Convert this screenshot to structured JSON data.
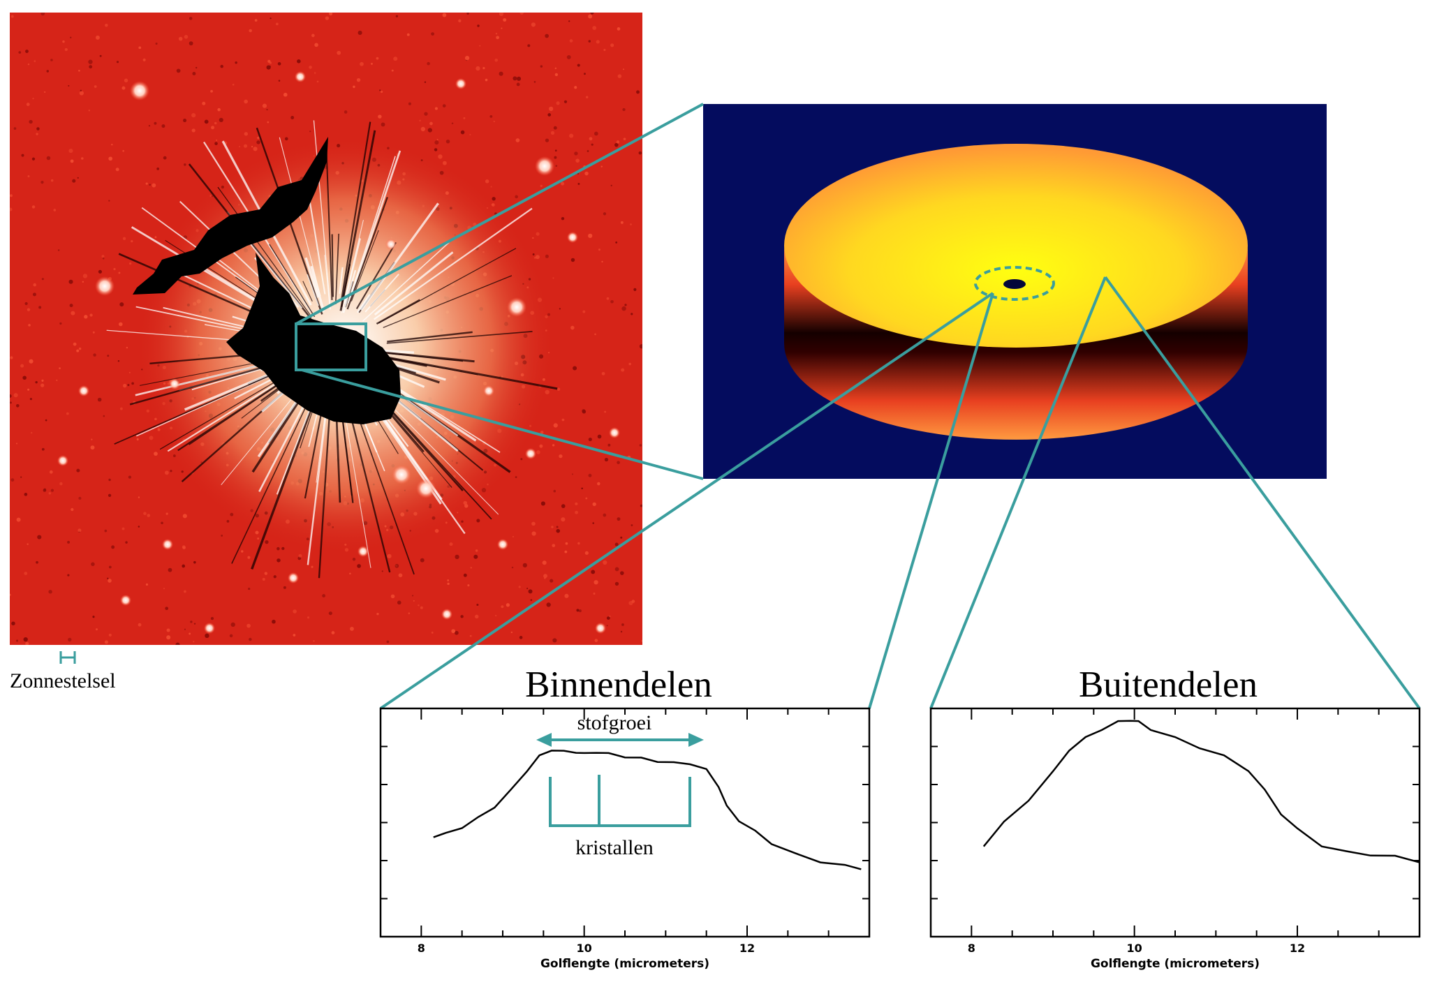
{
  "colors": {
    "teal": "#3a9e9e",
    "sky_red": "#d62418",
    "disk_background": "#040c5e",
    "disk_yellow": "#ffff10",
    "disk_orange": "#ff9030"
  },
  "image_labels": {
    "scale_label": "Zonnestelsel"
  },
  "panels": [
    {
      "title": "Binnendelen",
      "xlabel": "Golflengte (micrometers)",
      "annotations": {
        "arrow_label": "stofgroei",
        "bracket_label": "kristallen"
      }
    },
    {
      "title": "Buitendelen",
      "xlabel": "Golflengte (micrometers)"
    }
  ],
  "chart_data": [
    {
      "type": "line",
      "title": "Binnendelen",
      "xlabel": "Golflengte (micrometers)",
      "ylabel": "",
      "xlim": [
        7.5,
        13.5
      ],
      "x_ticks": [
        8,
        10,
        12
      ],
      "ylim": [
        0,
        1
      ],
      "x": [
        8.15,
        8.3,
        8.5,
        8.7,
        8.9,
        9.1,
        9.3,
        9.45,
        9.6,
        9.75,
        9.9,
        10.0,
        10.15,
        10.3,
        10.5,
        10.7,
        10.9,
        11.1,
        11.3,
        11.5,
        11.65,
        11.75,
        11.9,
        12.1,
        12.3,
        12.6,
        12.9,
        13.2,
        13.4
      ],
      "series": [
        {
          "values": [
            0.44,
            0.45,
            0.48,
            0.52,
            0.57,
            0.64,
            0.73,
            0.79,
            0.82,
            0.81,
            0.81,
            0.8,
            0.81,
            0.8,
            0.79,
            0.78,
            0.77,
            0.76,
            0.76,
            0.73,
            0.66,
            0.57,
            0.51,
            0.46,
            0.41,
            0.36,
            0.33,
            0.31,
            0.3
          ]
        }
      ],
      "annotations": [
        {
          "text": "stofgroei",
          "type": "double-arrow",
          "x_range": [
            9.45,
            11.5
          ]
        },
        {
          "text": "kristallen",
          "type": "bracket",
          "x_positions": [
            9.6,
            10.2,
            11.3
          ]
        }
      ]
    },
    {
      "type": "line",
      "title": "Buitendelen",
      "xlabel": "Golflengte (micrometers)",
      "ylabel": "",
      "xlim": [
        7.5,
        13.5
      ],
      "x_ticks": [
        8,
        10,
        12
      ],
      "ylim": [
        0,
        1
      ],
      "x": [
        8.15,
        8.4,
        8.7,
        9.0,
        9.2,
        9.4,
        9.6,
        9.8,
        9.95,
        10.05,
        10.2,
        10.5,
        10.8,
        11.1,
        11.4,
        11.6,
        11.8,
        12.0,
        12.3,
        12.6,
        12.9,
        13.2,
        13.5
      ],
      "series": [
        {
          "values": [
            0.4,
            0.5,
            0.6,
            0.72,
            0.82,
            0.87,
            0.91,
            0.94,
            0.95,
            0.94,
            0.91,
            0.87,
            0.83,
            0.79,
            0.73,
            0.64,
            0.54,
            0.47,
            0.4,
            0.37,
            0.36,
            0.35,
            0.33
          ]
        }
      ]
    }
  ]
}
